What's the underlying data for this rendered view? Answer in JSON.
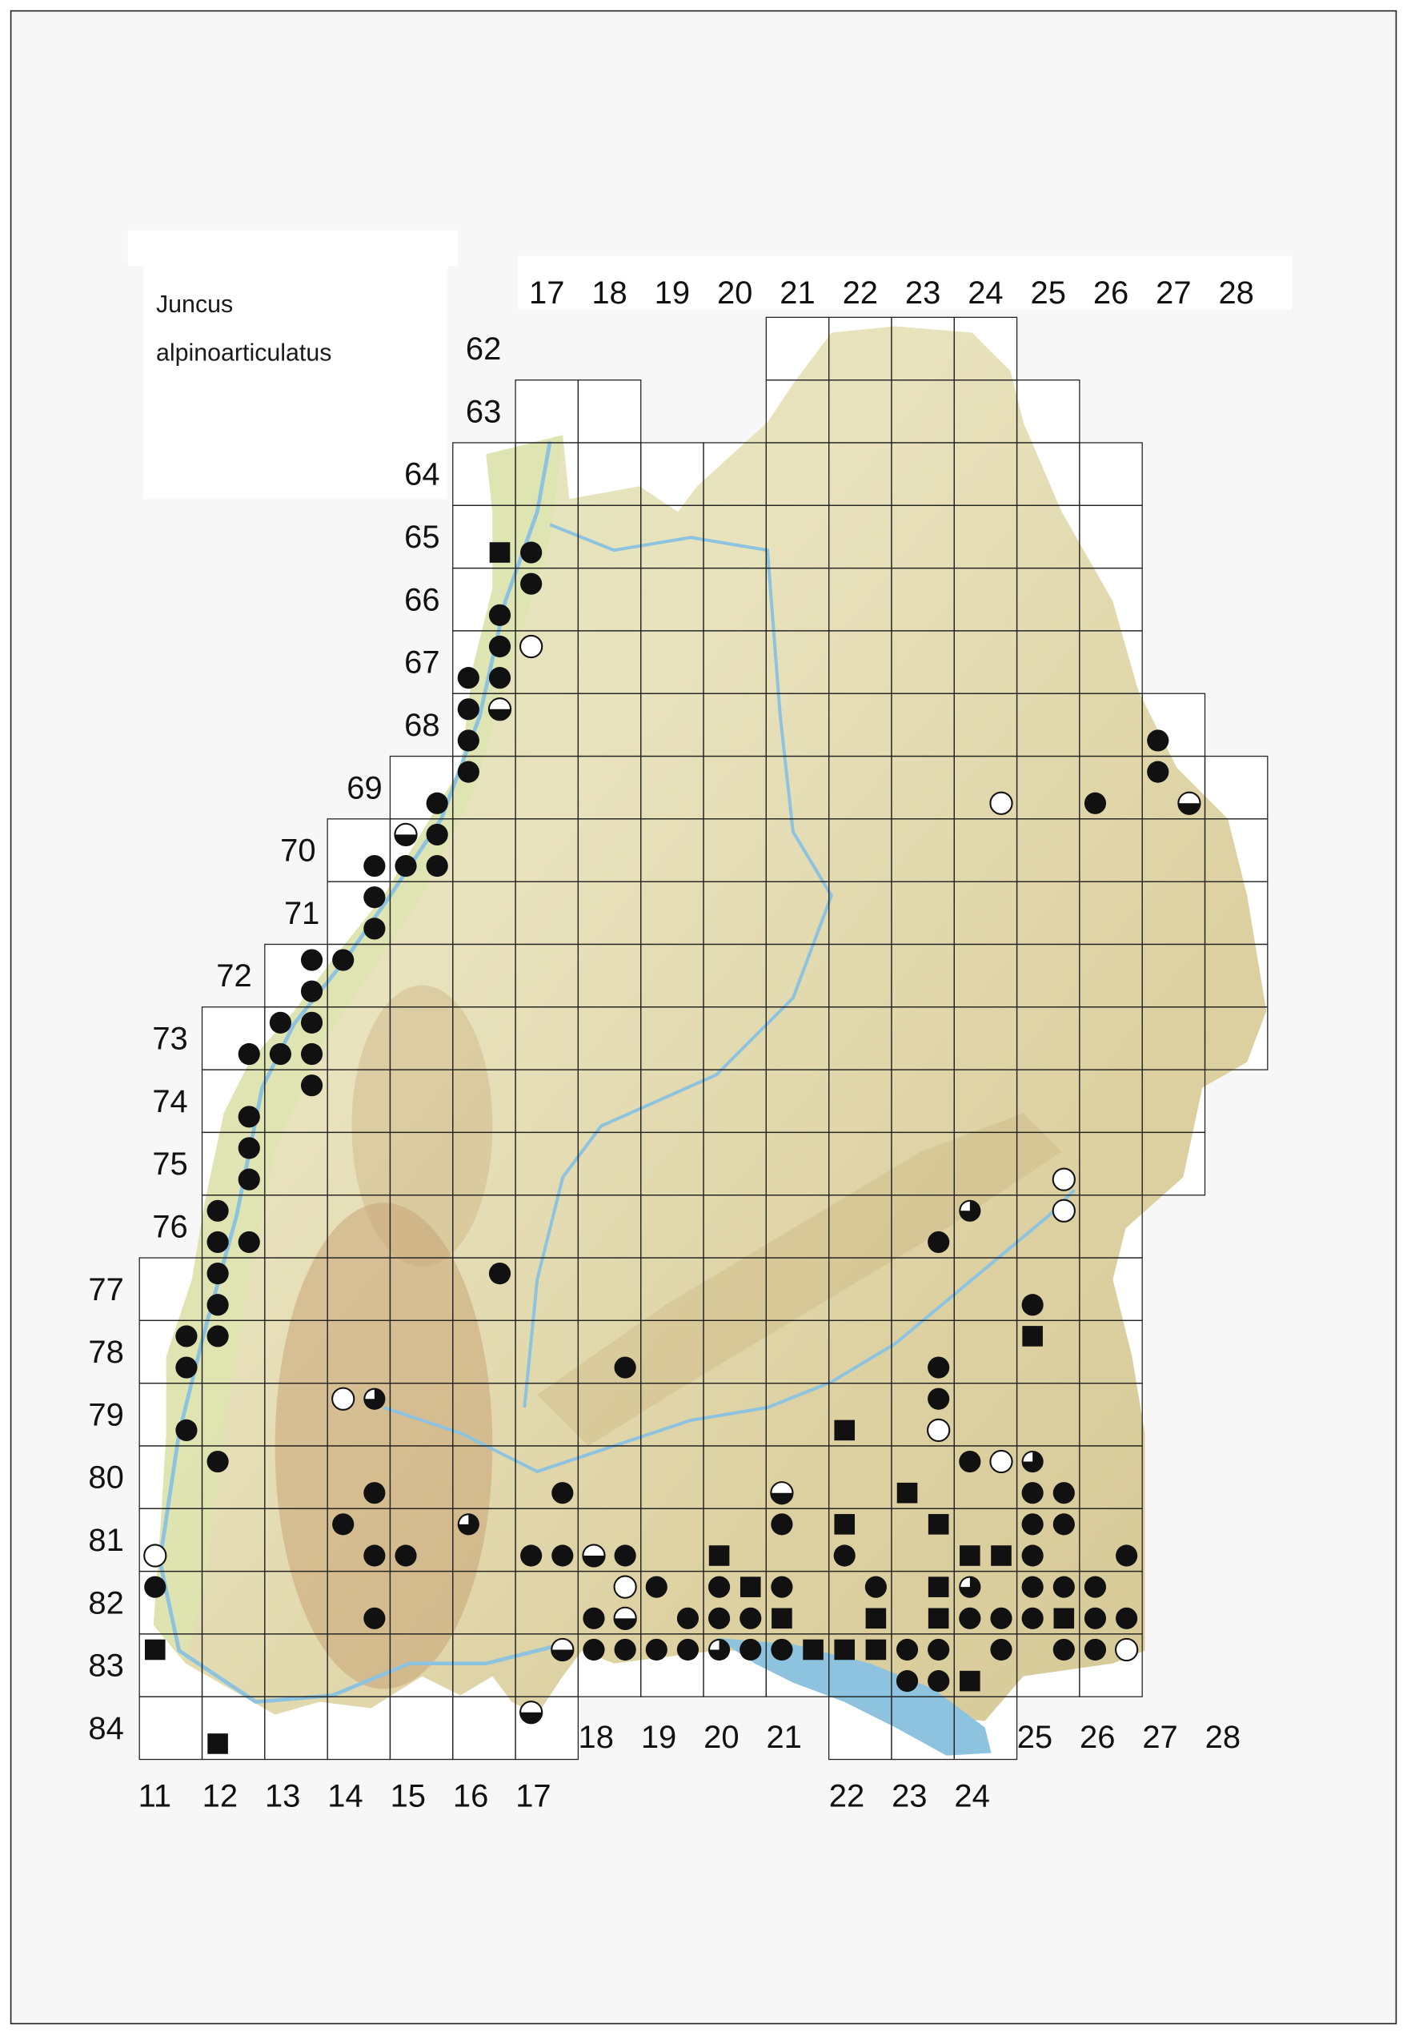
{
  "title": {
    "genus": "Juncus",
    "species": "alpinoarticulatus"
  },
  "colors": {
    "marker": "#111111",
    "lake": "#8ec3e0",
    "river": "#8ec3e0",
    "lowland": "#dfe8b8",
    "upland": "#d9cc9a",
    "mountains": "#b98a5c"
  },
  "symbol_types": {
    "F": "filled-circle",
    "S": "filled-square",
    "O": "open-circle",
    "H": "half-filled-circle",
    "Q": "three-quarter-filled-circle"
  },
  "column_labels_top": [
    "17",
    "18",
    "19",
    "20",
    "21",
    "22",
    "23",
    "24",
    "25",
    "26",
    "27",
    "28"
  ],
  "column_labels_bottom": [
    "11",
    "12",
    "13",
    "14",
    "15",
    "16",
    "17",
    "18",
    "19",
    "20",
    "21",
    "22",
    "23",
    "24",
    "25",
    "26",
    "27",
    "28"
  ],
  "row_labels": [
    "62",
    "63",
    "64",
    "65",
    "66",
    "67",
    "68",
    "69",
    "70",
    "71",
    "72",
    "73",
    "74",
    "75",
    "76",
    "77",
    "78",
    "79",
    "80",
    "81",
    "82",
    "83",
    "84"
  ],
  "markers": [
    [
      65,
      16,
      "SE",
      "S"
    ],
    [
      65,
      17,
      "SW",
      "F"
    ],
    [
      66,
      17,
      "NW",
      "F"
    ],
    [
      66,
      16,
      "SE",
      "F"
    ],
    [
      67,
      16,
      "NE",
      "F"
    ],
    [
      67,
      17,
      "NW",
      "O"
    ],
    [
      67,
      16,
      "SW",
      "F"
    ],
    [
      67,
      16,
      "SE",
      "F"
    ],
    [
      68,
      16,
      "NW",
      "F"
    ],
    [
      68,
      16,
      "NE",
      "H"
    ],
    [
      68,
      16,
      "SW",
      "F"
    ],
    [
      69,
      16,
      "NW",
      "F"
    ],
    [
      69,
      15,
      "SE",
      "F"
    ],
    [
      70,
      15,
      "NW",
      "H"
    ],
    [
      70,
      15,
      "NE",
      "F"
    ],
    [
      70,
      15,
      "SW",
      "F"
    ],
    [
      70,
      15,
      "SE",
      "F"
    ],
    [
      70,
      14,
      "SE",
      "F"
    ],
    [
      71,
      14,
      "NE",
      "F"
    ],
    [
      71,
      14,
      "SE",
      "F"
    ],
    [
      72,
      13,
      "NE",
      "F"
    ],
    [
      72,
      14,
      "NW",
      "F"
    ],
    [
      72,
      13,
      "SE",
      "F"
    ],
    [
      73,
      13,
      "NW",
      "F"
    ],
    [
      73,
      13,
      "NE",
      "F"
    ],
    [
      73,
      12,
      "SE",
      "F"
    ],
    [
      73,
      13,
      "SW",
      "F"
    ],
    [
      73,
      13,
      "SE",
      "F"
    ],
    [
      74,
      13,
      "NE",
      "F"
    ],
    [
      74,
      12,
      "SE",
      "F"
    ],
    [
      75,
      12,
      "NE",
      "F"
    ],
    [
      75,
      12,
      "SE",
      "F"
    ],
    [
      76,
      12,
      "NW",
      "F"
    ],
    [
      76,
      12,
      "SW",
      "F"
    ],
    [
      76,
      12,
      "SE",
      "F"
    ],
    [
      77,
      12,
      "NW",
      "F"
    ],
    [
      77,
      12,
      "SW",
      "F"
    ],
    [
      78,
      12,
      "NW",
      "F"
    ],
    [
      78,
      11,
      "NE",
      "F"
    ],
    [
      78,
      11,
      "SE",
      "F"
    ],
    [
      79,
      11,
      "SE",
      "F"
    ],
    [
      80,
      12,
      "NW",
      "F"
    ],
    [
      81,
      11,
      "SW",
      "O"
    ],
    [
      82,
      11,
      "NW",
      "F"
    ],
    [
      83,
      11,
      "NW",
      "S"
    ],
    [
      84,
      12,
      "SW",
      "S"
    ],
    [
      79,
      14,
      "NW",
      "O"
    ],
    [
      79,
      14,
      "NE",
      "Q"
    ],
    [
      80,
      14,
      "SE",
      "F"
    ],
    [
      81,
      14,
      "NW",
      "F"
    ],
    [
      81,
      14,
      "SE",
      "F"
    ],
    [
      81,
      15,
      "SW",
      "F"
    ],
    [
      82,
      14,
      "SE",
      "F"
    ],
    [
      77,
      16,
      "NE",
      "F"
    ],
    [
      81,
      16,
      "NW",
      "Q"
    ],
    [
      81,
      17,
      "SW",
      "F"
    ],
    [
      81,
      17,
      "SE",
      "F"
    ],
    [
      80,
      17,
      "SE",
      "F"
    ],
    [
      81,
      18,
      "SW",
      "H"
    ],
    [
      81,
      18,
      "SE",
      "F"
    ],
    [
      83,
      17,
      "NE",
      "H"
    ],
    [
      84,
      17,
      "NW",
      "H"
    ],
    [
      82,
      18,
      "NE",
      "O"
    ],
    [
      82,
      18,
      "SW",
      "F"
    ],
    [
      82,
      18,
      "SE",
      "H"
    ],
    [
      83,
      18,
      "NW",
      "F"
    ],
    [
      83,
      18,
      "NE",
      "F"
    ],
    [
      78,
      18,
      "SE",
      "F"
    ],
    [
      82,
      19,
      "NW",
      "F"
    ],
    [
      83,
      19,
      "NW",
      "F"
    ],
    [
      82,
      19,
      "SE",
      "F"
    ],
    [
      83,
      19,
      "NE",
      "F"
    ],
    [
      81,
      20,
      "SW",
      "S"
    ],
    [
      82,
      20,
      "NW",
      "F"
    ],
    [
      82,
      20,
      "NE",
      "S"
    ],
    [
      82,
      20,
      "SW",
      "F"
    ],
    [
      82,
      20,
      "SE",
      "F"
    ],
    [
      83,
      20,
      "NW",
      "Q"
    ],
    [
      83,
      20,
      "NE",
      "F"
    ],
    [
      80,
      21,
      "SW",
      "H"
    ],
    [
      81,
      21,
      "NW",
      "F"
    ],
    [
      82,
      21,
      "NW",
      "F"
    ],
    [
      82,
      21,
      "SW",
      "S"
    ],
    [
      83,
      21,
      "NW",
      "F"
    ],
    [
      83,
      21,
      "NE",
      "S"
    ],
    [
      83,
      22,
      "NW",
      "S"
    ],
    [
      79,
      22,
      "SW",
      "S"
    ],
    [
      81,
      22,
      "NW",
      "S"
    ],
    [
      81,
      22,
      "SW",
      "F"
    ],
    [
      82,
      22,
      "NE",
      "F"
    ],
    [
      82,
      22,
      "SE",
      "S"
    ],
    [
      83,
      22,
      "NE",
      "S"
    ],
    [
      80,
      23,
      "SW",
      "S"
    ],
    [
      83,
      23,
      "NW",
      "F"
    ],
    [
      83,
      23,
      "SW",
      "F"
    ],
    [
      83,
      23,
      "SE",
      "F"
    ],
    [
      83,
      23,
      "NE",
      "F"
    ],
    [
      82,
      23,
      "SE",
      "S"
    ],
    [
      82,
      23,
      "NE",
      "S"
    ],
    [
      81,
      23,
      "NE",
      "S"
    ],
    [
      79,
      23,
      "SE",
      "O"
    ],
    [
      79,
      23,
      "NE",
      "F"
    ],
    [
      78,
      23,
      "SE",
      "F"
    ],
    [
      76,
      23,
      "SE",
      "F"
    ],
    [
      76,
      24,
      "NW",
      "Q"
    ],
    [
      80,
      24,
      "NW",
      "F"
    ],
    [
      80,
      24,
      "NE",
      "O"
    ],
    [
      80,
      25,
      "NW",
      "Q"
    ],
    [
      80,
      25,
      "SW",
      "F"
    ],
    [
      80,
      25,
      "SE",
      "F"
    ],
    [
      81,
      25,
      "NW",
      "F"
    ],
    [
      81,
      25,
      "NE",
      "F"
    ],
    [
      81,
      24,
      "SW",
      "S"
    ],
    [
      81,
      24,
      "SE",
      "S"
    ],
    [
      81,
      25,
      "SW",
      "F"
    ],
    [
      81,
      26,
      "SE",
      "F"
    ],
    [
      82,
      24,
      "NW",
      "Q"
    ],
    [
      82,
      25,
      "NW",
      "F"
    ],
    [
      82,
      25,
      "NE",
      "F"
    ],
    [
      82,
      26,
      "NW",
      "F"
    ],
    [
      82,
      24,
      "SW",
      "F"
    ],
    [
      82,
      24,
      "SE",
      "F"
    ],
    [
      82,
      25,
      "SW",
      "F"
    ],
    [
      82,
      25,
      "SE",
      "S"
    ],
    [
      82,
      26,
      "SW",
      "F"
    ],
    [
      82,
      26,
      "SE",
      "F"
    ],
    [
      83,
      24,
      "NE",
      "F"
    ],
    [
      83,
      25,
      "NE",
      "F"
    ],
    [
      83,
      26,
      "NW",
      "F"
    ],
    [
      83,
      26,
      "NE",
      "O"
    ],
    [
      83,
      24,
      "SW",
      "S"
    ],
    [
      77,
      25,
      "SW",
      "F"
    ],
    [
      78,
      25,
      "NW",
      "S"
    ],
    [
      75,
      25,
      "SE",
      "O"
    ],
    [
      76,
      25,
      "NE",
      "O"
    ],
    [
      69,
      24,
      "SE",
      "O"
    ],
    [
      69,
      26,
      "SW",
      "F"
    ],
    [
      68,
      27,
      "SW",
      "F"
    ],
    [
      69,
      27,
      "NW",
      "F"
    ],
    [
      69,
      27,
      "SE",
      "H"
    ]
  ]
}
